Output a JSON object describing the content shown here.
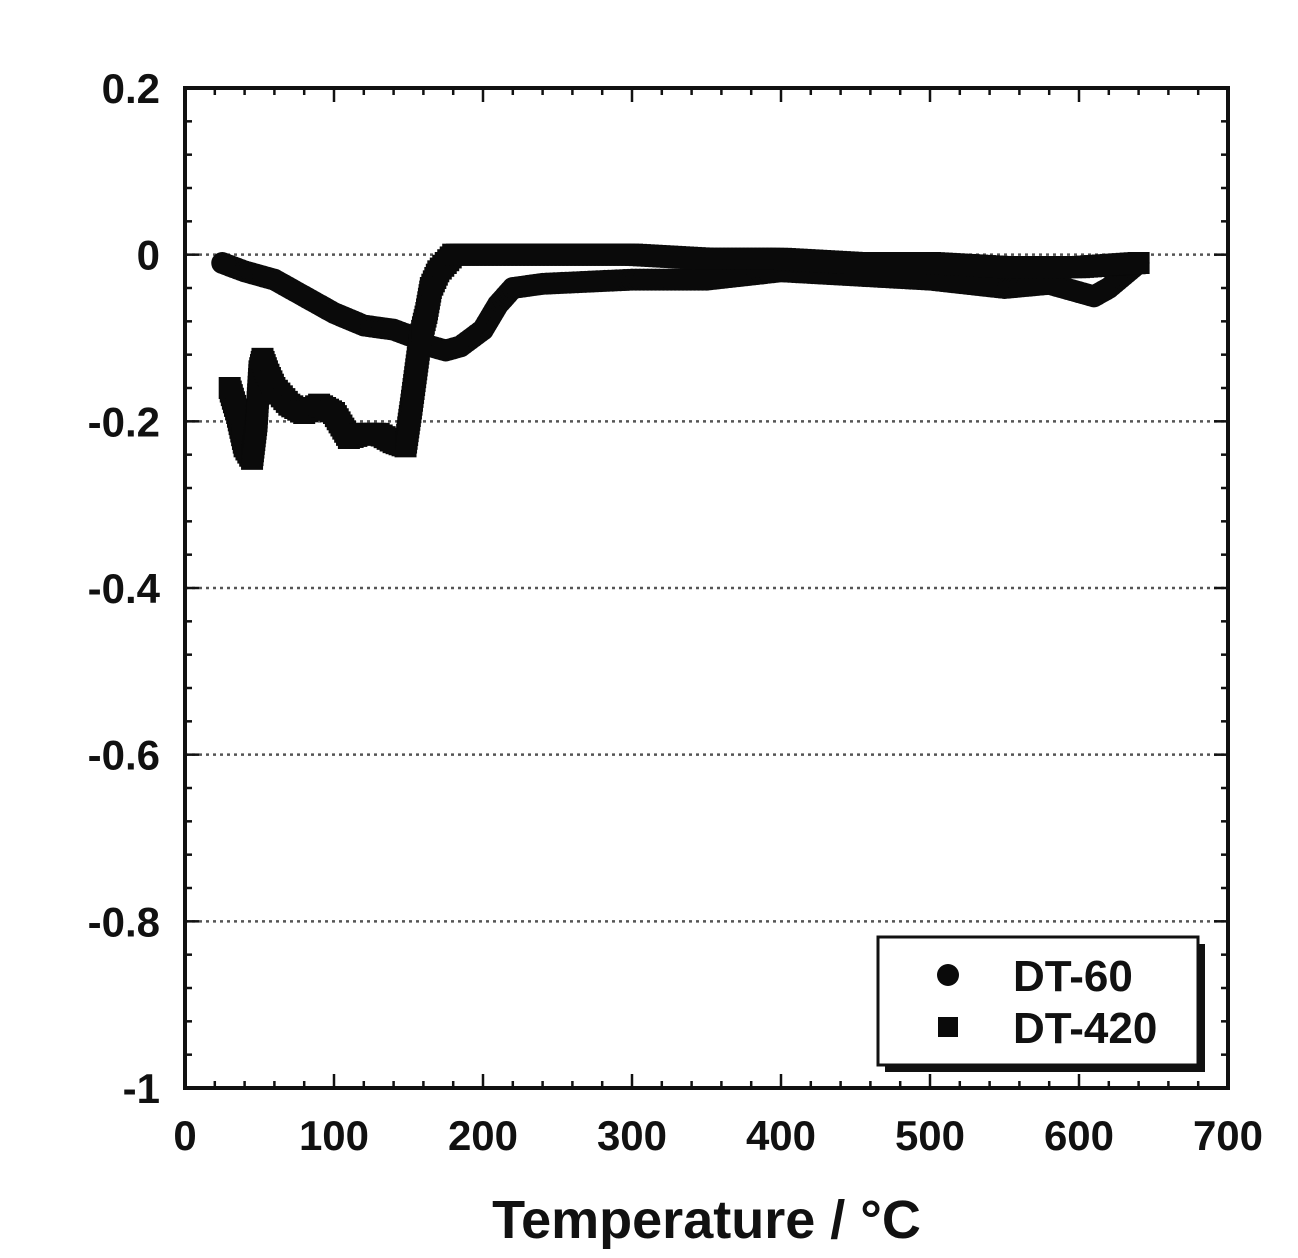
{
  "chart_data": {
    "type": "scatter",
    "title": "",
    "xlabel": "Temperature / °C",
    "ylabel": "",
    "xlim": [
      0,
      700
    ],
    "ylim": [
      -1,
      0.2
    ],
    "xticks": [
      0,
      100,
      200,
      300,
      400,
      500,
      600,
      700
    ],
    "yticks": [
      0.2,
      0,
      -0.2,
      -0.4,
      -0.6,
      -0.8,
      -1
    ],
    "xtick_labels": [
      "0",
      "100",
      "200",
      "300",
      "400",
      "500",
      "600",
      "700"
    ],
    "ytick_labels": [
      "0.2",
      "0",
      "-0.2",
      "-0.4",
      "-0.6",
      "-0.8",
      "-1"
    ],
    "grid": {
      "horizontal_dotted": [
        0,
        -0.2,
        -0.4,
        -0.6,
        -0.8
      ]
    },
    "legend_position": "bottom-right",
    "colors": {
      "series": "#0a0a0a",
      "axis": "#111111",
      "grid": "#555555"
    },
    "series": [
      {
        "name": "DT-60",
        "marker": "circle",
        "x": [
          25,
          40,
          60,
          80,
          100,
          120,
          140,
          155,
          165,
          175,
          185,
          200,
          210,
          220,
          240,
          300,
          350,
          400,
          450,
          500,
          550,
          580,
          600,
          610,
          620,
          640
        ],
        "y": [
          -0.01,
          -0.02,
          -0.03,
          -0.05,
          -0.07,
          -0.085,
          -0.09,
          -0.1,
          -0.11,
          -0.115,
          -0.11,
          -0.09,
          -0.06,
          -0.04,
          -0.035,
          -0.03,
          -0.03,
          -0.02,
          -0.025,
          -0.03,
          -0.04,
          -0.035,
          -0.045,
          -0.05,
          -0.04,
          -0.01
        ]
      },
      {
        "name": "DT-420",
        "marker": "square",
        "x": [
          30,
          35,
          40,
          45,
          48,
          50,
          52,
          55,
          60,
          70,
          80,
          90,
          100,
          110,
          120,
          130,
          140,
          148,
          152,
          158,
          162,
          165,
          170,
          175,
          180,
          190,
          200,
          250,
          300,
          350,
          400,
          450,
          500,
          550,
          600,
          640
        ],
        "y": [
          -0.16,
          -0.19,
          -0.23,
          -0.245,
          -0.2,
          -0.14,
          -0.125,
          -0.14,
          -0.16,
          -0.18,
          -0.19,
          -0.18,
          -0.19,
          -0.22,
          -0.215,
          -0.215,
          -0.225,
          -0.23,
          -0.18,
          -0.1,
          -0.07,
          -0.04,
          -0.02,
          -0.01,
          0.0,
          0.0,
          0.0,
          0.0,
          0.0,
          -0.005,
          -0.005,
          -0.01,
          -0.01,
          -0.015,
          -0.015,
          -0.01
        ]
      }
    ]
  }
}
